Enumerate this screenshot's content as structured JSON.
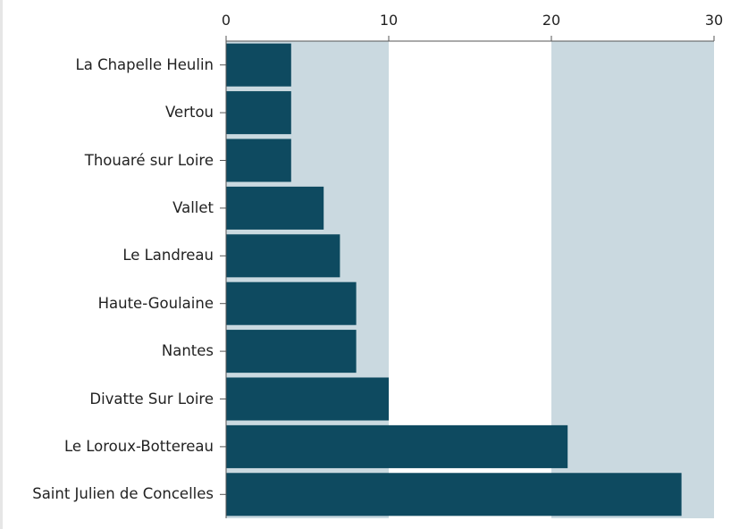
{
  "chart_data": {
    "type": "bar",
    "orientation": "horizontal",
    "categories": [
      "La Chapelle Heulin",
      "Vertou",
      "Thouaré sur Loire",
      "Vallet",
      "Le Landreau",
      "Haute-Goulaine",
      "Nantes",
      "Divatte Sur Loire",
      "Le Loroux-Bottereau",
      "Saint Julien de Concelles"
    ],
    "values": [
      4,
      4,
      4,
      6,
      7,
      8,
      8,
      10,
      21,
      28
    ],
    "color": "#0e4a60",
    "band_color": "#cad9e0",
    "xlim": [
      0,
      30
    ],
    "xticks": [
      0,
      10,
      20,
      30
    ]
  }
}
